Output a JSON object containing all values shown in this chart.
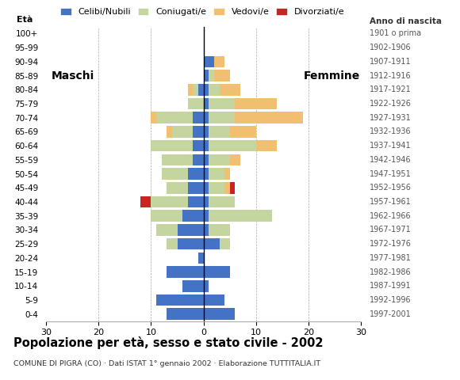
{
  "age_groups": [
    "0-4",
    "5-9",
    "10-14",
    "15-19",
    "20-24",
    "25-29",
    "30-34",
    "35-39",
    "40-44",
    "45-49",
    "50-54",
    "55-59",
    "60-64",
    "65-69",
    "70-74",
    "75-79",
    "80-84",
    "85-89",
    "90-94",
    "95-99",
    "100+"
  ],
  "birth_years": [
    "1997-2001",
    "1992-1996",
    "1987-1991",
    "1982-1986",
    "1977-1981",
    "1972-1976",
    "1967-1971",
    "1962-1966",
    "1957-1961",
    "1952-1956",
    "1947-1951",
    "1942-1946",
    "1937-1941",
    "1932-1936",
    "1927-1931",
    "1922-1926",
    "1917-1921",
    "1912-1916",
    "1907-1911",
    "1902-1906",
    "1901 o prima"
  ],
  "males_celibe": [
    7,
    9,
    4,
    7,
    1,
    5,
    5,
    4,
    3,
    3,
    3,
    2,
    2,
    2,
    2,
    0,
    1,
    0,
    0,
    0,
    0
  ],
  "males_coniugato": [
    0,
    0,
    0,
    0,
    0,
    2,
    4,
    6,
    7,
    4,
    5,
    6,
    8,
    4,
    7,
    3,
    1,
    0,
    0,
    0,
    0
  ],
  "males_vedovo": [
    0,
    0,
    0,
    0,
    0,
    0,
    0,
    0,
    0,
    0,
    0,
    0,
    0,
    1,
    1,
    0,
    1,
    0,
    0,
    0,
    0
  ],
  "males_divorziato": [
    0,
    0,
    0,
    0,
    0,
    0,
    0,
    0,
    2,
    0,
    0,
    0,
    0,
    0,
    0,
    0,
    0,
    0,
    0,
    0,
    0
  ],
  "females_nubile": [
    6,
    4,
    1,
    5,
    0,
    3,
    1,
    1,
    1,
    1,
    1,
    1,
    1,
    1,
    1,
    1,
    1,
    1,
    2,
    0,
    0
  ],
  "females_coniugata": [
    0,
    0,
    0,
    0,
    0,
    2,
    4,
    12,
    5,
    3,
    3,
    4,
    9,
    4,
    5,
    5,
    2,
    1,
    0,
    0,
    0
  ],
  "females_vedova": [
    0,
    0,
    0,
    0,
    0,
    0,
    0,
    0,
    0,
    1,
    1,
    2,
    4,
    5,
    13,
    8,
    4,
    3,
    2,
    0,
    0
  ],
  "females_divorziata": [
    0,
    0,
    0,
    0,
    0,
    0,
    0,
    0,
    0,
    1,
    0,
    0,
    0,
    0,
    0,
    0,
    0,
    0,
    0,
    0,
    0
  ],
  "col_celibe": "#4472C4",
  "col_coniugato": "#C5D5A0",
  "col_vedovo": "#F0C070",
  "col_divorziato": "#CC2222",
  "legend_labels": [
    "Celibi/Nubili",
    "Coniugati/e",
    "Vedovi/e",
    "Divorziati/e"
  ],
  "title": "Popolazione per età, sesso e stato civile - 2002",
  "subtitle": "COMUNE DI PIGRA (CO) · Dati ISTAT 1° gennaio 2002 · Elaborazione TUTTITALIA.IT",
  "label_maschi": "Maschi",
  "label_femmine": "Femmine",
  "label_eta": "Età",
  "label_anno": "Anno di nascita",
  "xlim": 30
}
